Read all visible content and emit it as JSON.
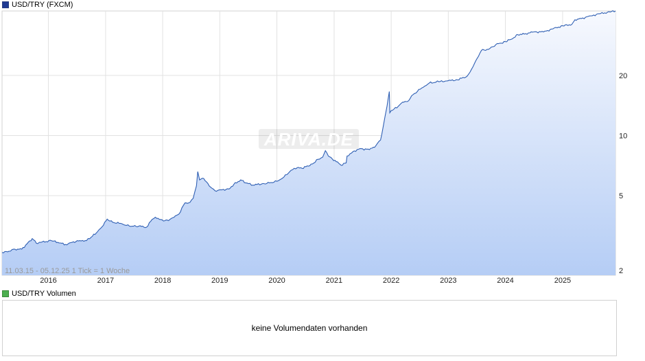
{
  "price_panel": {
    "legend": "USD/TRY (FXCM)",
    "legend_color": "#1f3a93",
    "range_label": "11.03.15 - 05.12.25   1 Tick = 1 Woche",
    "watermark": "ARIVA.DE"
  },
  "volume_panel": {
    "legend": "USD/TRY Volumen",
    "legend_color": "#4caf50",
    "message": "keine Volumendaten vorhanden"
  },
  "chart_data": {
    "type": "area",
    "y_scale": "log",
    "ylim": [
      2,
      42
    ],
    "y_ticks": [
      2,
      5,
      10,
      20
    ],
    "xlim": [
      "2015-03-11",
      "2025-12-05"
    ],
    "x_ticks": [
      "2016",
      "2017",
      "2018",
      "2019",
      "2020",
      "2021",
      "2022",
      "2023",
      "2024",
      "2025"
    ],
    "grid": true,
    "line_color": "#2f5fb3",
    "fill_top_color": "#f7f9fe",
    "fill_bottom_color": "#b5cdf5",
    "series": [
      {
        "x": [
          "2015-03-11",
          "2015-04-15",
          "2015-06-01",
          "2015-07-15",
          "2015-09-20",
          "2015-10-25",
          "2015-11-15",
          "2016-01-20",
          "2016-03-01",
          "2016-04-20",
          "2016-06-01",
          "2016-07-20",
          "2016-09-01",
          "2016-10-01",
          "2016-11-10",
          "2016-12-10",
          "2017-01-11",
          "2017-02-15",
          "2017-04-15",
          "2017-05-15",
          "2017-06-20",
          "2017-08-01",
          "2017-09-20",
          "2017-10-25",
          "2017-11-15",
          "2017-12-20",
          "2018-01-15",
          "2018-02-15",
          "2018-03-15",
          "2018-04-15",
          "2018-05-23",
          "2018-06-15",
          "2018-07-15",
          "2018-08-05",
          "2018-08-13",
          "2018-08-25",
          "2018-09-20",
          "2018-10-25",
          "2018-12-01",
          "2019-01-15",
          "2019-03-01",
          "2019-04-01",
          "2019-05-15",
          "2019-06-15",
          "2019-08-01",
          "2019-10-10",
          "2019-11-15",
          "2020-01-01",
          "2020-02-15",
          "2020-04-01",
          "2020-05-10",
          "2020-06-10",
          "2020-08-15",
          "2020-09-20",
          "2020-10-20",
          "2020-11-06",
          "2020-11-25",
          "2021-01-15",
          "2021-02-15",
          "2021-03-19",
          "2021-03-25",
          "2021-05-01",
          "2021-06-15",
          "2021-08-15",
          "2021-09-25",
          "2021-10-25",
          "2021-11-10",
          "2021-11-23",
          "2021-12-05",
          "2021-12-20",
          "2021-12-23",
          "2022-01-10",
          "2022-02-15",
          "2022-03-15",
          "2022-04-15",
          "2022-05-20",
          "2022-07-15",
          "2022-09-01",
          "2022-11-01",
          "2023-01-01",
          "2023-03-01",
          "2023-05-01",
          "2023-05-30",
          "2023-06-25",
          "2023-08-01",
          "2023-09-15",
          "2023-11-01",
          "2024-01-01",
          "2024-02-15",
          "2024-03-20",
          "2024-05-01",
          "2024-07-01",
          "2024-09-01",
          "2024-11-01",
          "2025-01-01",
          "2025-03-01",
          "2025-03-21",
          "2025-05-01",
          "2025-07-01",
          "2025-09-01",
          "2025-11-01",
          "2025-12-05"
        ],
        "y": [
          2.6,
          2.62,
          2.7,
          2.7,
          3.05,
          2.88,
          2.92,
          2.98,
          2.92,
          2.85,
          2.92,
          2.98,
          2.98,
          3.1,
          3.3,
          3.5,
          3.82,
          3.68,
          3.62,
          3.55,
          3.52,
          3.52,
          3.48,
          3.8,
          3.9,
          3.8,
          3.75,
          3.8,
          3.9,
          4.05,
          4.6,
          4.6,
          4.85,
          5.6,
          6.6,
          6.0,
          6.1,
          5.6,
          5.3,
          5.35,
          5.4,
          5.7,
          6.0,
          5.8,
          5.65,
          5.75,
          5.8,
          5.9,
          6.2,
          6.7,
          6.9,
          6.85,
          7.2,
          7.6,
          7.8,
          8.4,
          7.9,
          7.4,
          7.1,
          7.3,
          7.9,
          8.3,
          8.6,
          8.5,
          8.9,
          9.5,
          11.0,
          12.5,
          14.0,
          16.6,
          13.0,
          13.4,
          14.0,
          14.7,
          14.8,
          16.0,
          17.3,
          18.3,
          18.6,
          18.8,
          19.0,
          19.8,
          21.5,
          23.6,
          26.7,
          27.0,
          28.5,
          29.5,
          30.5,
          32.0,
          32.2,
          33.0,
          33.0,
          34.2,
          35.4,
          36.0,
          38.0,
          38.5,
          39.7,
          40.8,
          41.5,
          42.0
        ]
      }
    ]
  }
}
